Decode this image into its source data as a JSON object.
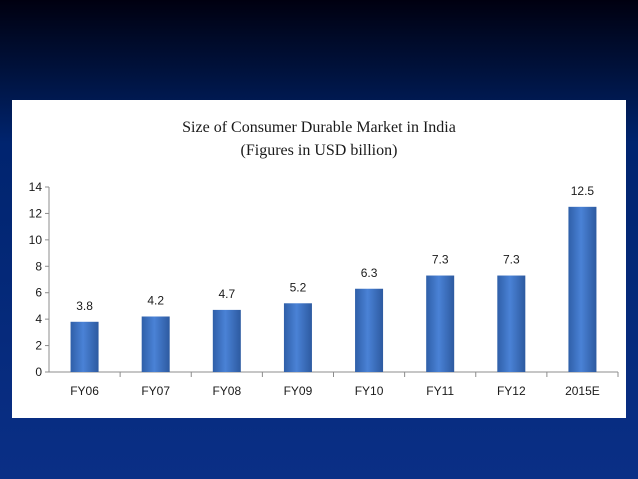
{
  "chart_data": {
    "type": "bar",
    "title": "Size of Consumer Durable Market in India",
    "subtitle": "(Figures in USD billion)",
    "categories": [
      "FY06",
      "FY07",
      "FY08",
      "FY09",
      "FY10",
      "FY11",
      "FY12",
      "2015E"
    ],
    "values": [
      3.8,
      4.2,
      4.7,
      5.2,
      6.3,
      7.3,
      7.3,
      12.5
    ],
    "data_labels": [
      "3.8",
      "4.2",
      "4.7",
      "5.2",
      "6.3",
      "7.3",
      "7.3",
      "12.5"
    ],
    "y_ticks": [
      "0",
      "2",
      "4",
      "6",
      "8",
      "10",
      "12",
      "14"
    ],
    "ylim": [
      0,
      14
    ],
    "xlabel": "",
    "ylabel": "",
    "grid": false,
    "legend": "none",
    "bar_color": "#3a6fc4"
  }
}
